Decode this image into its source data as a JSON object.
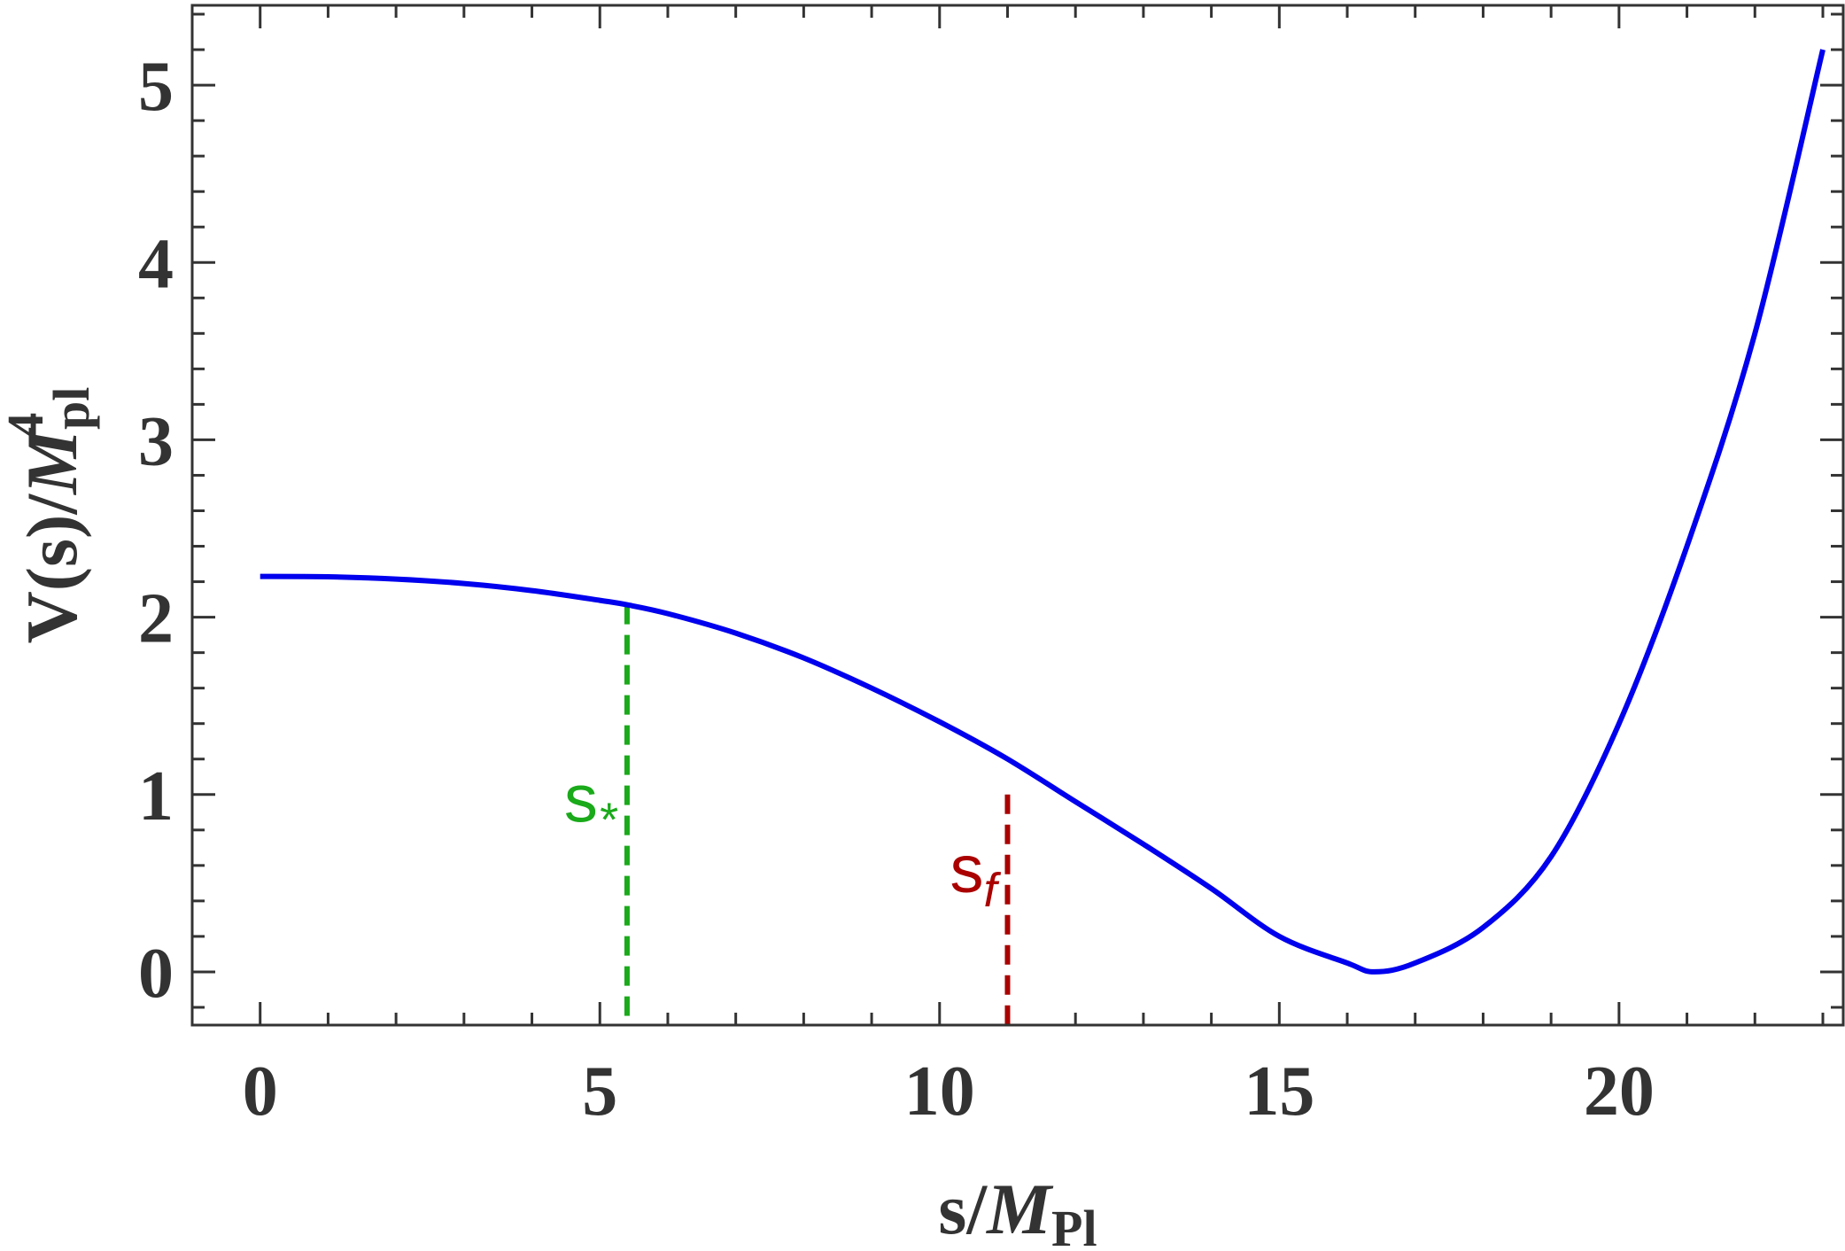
{
  "chart_data": {
    "type": "line",
    "xlabel": {
      "main": "s/",
      "italic": "M",
      "sub": "Pl"
    },
    "ylabel": {
      "main": "V(s)/",
      "italic": "M",
      "sub": "pl",
      "sup": "4"
    },
    "xlim": [
      -1,
      23.3
    ],
    "ylim": [
      -0.3,
      5.45
    ],
    "x_ticks": [
      0,
      5,
      10,
      15,
      20
    ],
    "y_ticks": [
      0,
      1,
      2,
      3,
      4,
      5
    ],
    "x_tick_labels": [
      "0",
      "5",
      "10",
      "15",
      "20"
    ],
    "y_tick_labels": [
      "0",
      "1",
      "2",
      "3",
      "4",
      "5"
    ],
    "x_minor_step": 1,
    "y_minor_step": 0.2,
    "grid": false,
    "legend": "none",
    "series": [
      {
        "color": "#0000ee",
        "x": [
          0,
          1,
          2,
          3,
          4,
          5,
          5.4,
          6,
          7,
          8,
          9,
          10,
          11,
          12,
          13,
          14,
          15,
          16,
          16.4,
          17,
          18,
          19,
          20,
          21,
          22,
          23
        ],
        "y": [
          2.23,
          2.228,
          2.215,
          2.19,
          2.15,
          2.095,
          2.07,
          2.02,
          1.91,
          1.77,
          1.6,
          1.41,
          1.2,
          0.96,
          0.72,
          0.47,
          0.2,
          0.05,
          0.0,
          0.05,
          0.25,
          0.65,
          1.4,
          2.4,
          3.6,
          5.2
        ]
      }
    ],
    "markers": [
      {
        "label_main": "s",
        "label_sub": "*",
        "x": 5.4,
        "y_top": 2.07,
        "color": "#1aaa1a"
      },
      {
        "label_main": "s",
        "label_sub": "f",
        "x": 11.0,
        "y_top": 1.0,
        "color": "#aa0000"
      }
    ]
  }
}
